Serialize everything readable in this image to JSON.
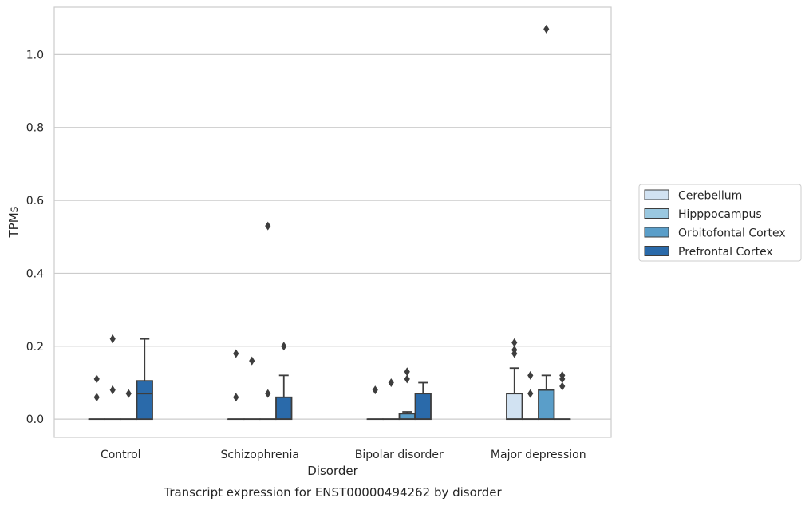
{
  "chart_data": {
    "type": "box",
    "xlabel": "Disorder",
    "ylabel": "TPMs",
    "caption": "Transcript expression for ENST00000494262 by disorder",
    "ylim": [
      -0.05,
      1.13
    ],
    "yticks": [
      0.0,
      0.2,
      0.4,
      0.6,
      0.8,
      1.0
    ],
    "ytick_labels": [
      "0.0",
      "0.2",
      "0.4",
      "0.6",
      "0.8",
      "1.0"
    ],
    "grid": "horizontal",
    "legend_position": "right",
    "categories": [
      "Control",
      "Schizophrenia",
      "Bipolar disorder",
      "Major depression"
    ],
    "series": [
      {
        "name": "Cerebellum",
        "color": "#d1e2f2",
        "boxes": [
          {
            "q1": 0,
            "median": 0,
            "q3": 0,
            "whisker_low": 0,
            "whisker_high": 0,
            "outliers": [
              0.06,
              0.11
            ]
          },
          {
            "q1": 0,
            "median": 0,
            "q3": 0,
            "whisker_low": 0,
            "whisker_high": 0,
            "outliers": [
              0.06,
              0.18
            ]
          },
          {
            "q1": 0,
            "median": 0,
            "q3": 0,
            "whisker_low": 0,
            "whisker_high": 0,
            "outliers": [
              0.08
            ]
          },
          {
            "q1": 0,
            "median": 0,
            "q3": 0.07,
            "whisker_low": 0,
            "whisker_high": 0.14,
            "outliers": [
              0.18,
              0.19,
              0.21
            ]
          }
        ]
      },
      {
        "name": "Hipppocampus",
        "color": "#9ac8e0",
        "boxes": [
          {
            "q1": 0,
            "median": 0,
            "q3": 0,
            "whisker_low": 0,
            "whisker_high": 0,
            "outliers": [
              0.08,
              0.22
            ]
          },
          {
            "q1": 0,
            "median": 0,
            "q3": 0,
            "whisker_low": 0,
            "whisker_high": 0,
            "outliers": [
              0.16
            ]
          },
          {
            "q1": 0,
            "median": 0,
            "q3": 0,
            "whisker_low": 0,
            "whisker_high": 0,
            "outliers": [
              0.1
            ]
          },
          {
            "q1": 0,
            "median": 0,
            "q3": 0,
            "whisker_low": 0,
            "whisker_high": 0,
            "outliers": [
              0.07,
              0.12
            ]
          }
        ]
      },
      {
        "name": "Orbitofontal Cortex",
        "color": "#5a9ec9",
        "boxes": [
          {
            "q1": 0,
            "median": 0,
            "q3": 0,
            "whisker_low": 0,
            "whisker_high": 0,
            "outliers": [
              0.07
            ]
          },
          {
            "q1": 0,
            "median": 0,
            "q3": 0,
            "whisker_low": 0,
            "whisker_high": 0,
            "outliers": [
              0.07,
              0.53
            ]
          },
          {
            "q1": 0,
            "median": 0,
            "q3": 0.015,
            "whisker_low": 0,
            "whisker_high": 0.02,
            "outliers": [
              0.11,
              0.13
            ]
          },
          {
            "q1": 0,
            "median": 0,
            "q3": 0.08,
            "whisker_low": 0,
            "whisker_high": 0.12,
            "outliers": [
              1.07
            ]
          }
        ]
      },
      {
        "name": "Prefrontal Cortex",
        "color": "#2a6aaa",
        "boxes": [
          {
            "q1": 0,
            "median": 0.07,
            "q3": 0.105,
            "whisker_low": 0,
            "whisker_high": 0.22,
            "outliers": []
          },
          {
            "q1": 0,
            "median": 0,
            "q3": 0.06,
            "whisker_low": 0,
            "whisker_high": 0.12,
            "outliers": [
              0.2
            ]
          },
          {
            "q1": 0,
            "median": 0,
            "q3": 0.07,
            "whisker_low": 0,
            "whisker_high": 0.1,
            "outliers": []
          },
          {
            "q1": 0,
            "median": 0,
            "q3": 0,
            "whisker_low": 0,
            "whisker_high": 0,
            "outliers": [
              0.09,
              0.11,
              0.12
            ]
          }
        ]
      }
    ]
  }
}
